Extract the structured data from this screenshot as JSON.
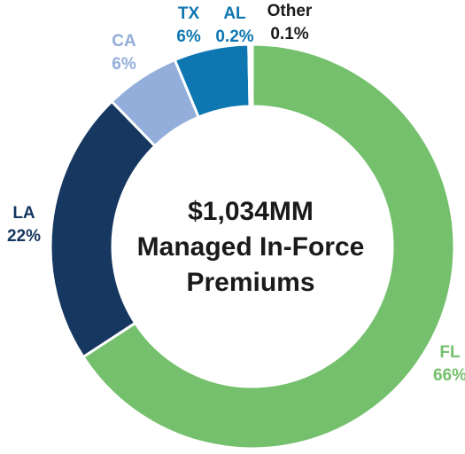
{
  "chart_data": {
    "type": "donut",
    "center_text": [
      "$1,034MM",
      "Managed In-Force",
      "Premiums"
    ],
    "categories": [
      "FL",
      "LA",
      "CA",
      "TX",
      "AL",
      "Other"
    ],
    "values": [
      66,
      22,
      6,
      6,
      0.2,
      0.1
    ],
    "value_labels": [
      "66%",
      "22%",
      "6%",
      "6%",
      "0.2%",
      "0.1%"
    ],
    "colors": [
      "#74c06c",
      "#163760",
      "#93aedb",
      "#0e77b1",
      "#0e77b1",
      "#1a1a1a"
    ]
  }
}
